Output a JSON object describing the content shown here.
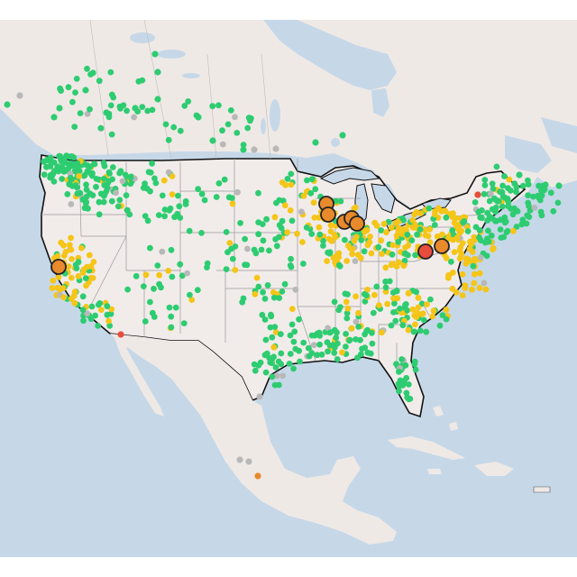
{
  "map": {
    "colors": {
      "ocean": "#c6d8e8",
      "land": "#efe9e6",
      "us_land": "#f1ecea",
      "border": "#111111",
      "state_lines": "#9a9a9a",
      "water_inland": "#c6d8e8"
    },
    "legend_categories": [
      {
        "key": "good",
        "color": "#2ecc71"
      },
      {
        "key": "moderate",
        "color": "#f5c518"
      },
      {
        "key": "unhealthy_sensitive",
        "color": "#e8892b"
      },
      {
        "key": "unhealthy",
        "color": "#e74c3c"
      },
      {
        "key": "no_data",
        "color": "#b8b8b8"
      }
    ],
    "large_markers": [
      {
        "id": "m1",
        "category": "unhealthy_sensitive"
      },
      {
        "id": "m2",
        "category": "unhealthy_sensitive"
      },
      {
        "id": "m3",
        "category": "unhealthy_sensitive"
      },
      {
        "id": "m4",
        "category": "unhealthy_sensitive"
      },
      {
        "id": "m5",
        "category": "unhealthy_sensitive"
      },
      {
        "id": "m6",
        "category": "unhealthy_sensitive"
      },
      {
        "id": "m7",
        "category": "unhealthy"
      },
      {
        "id": "m8",
        "category": "unhealthy_sensitive"
      }
    ]
  }
}
